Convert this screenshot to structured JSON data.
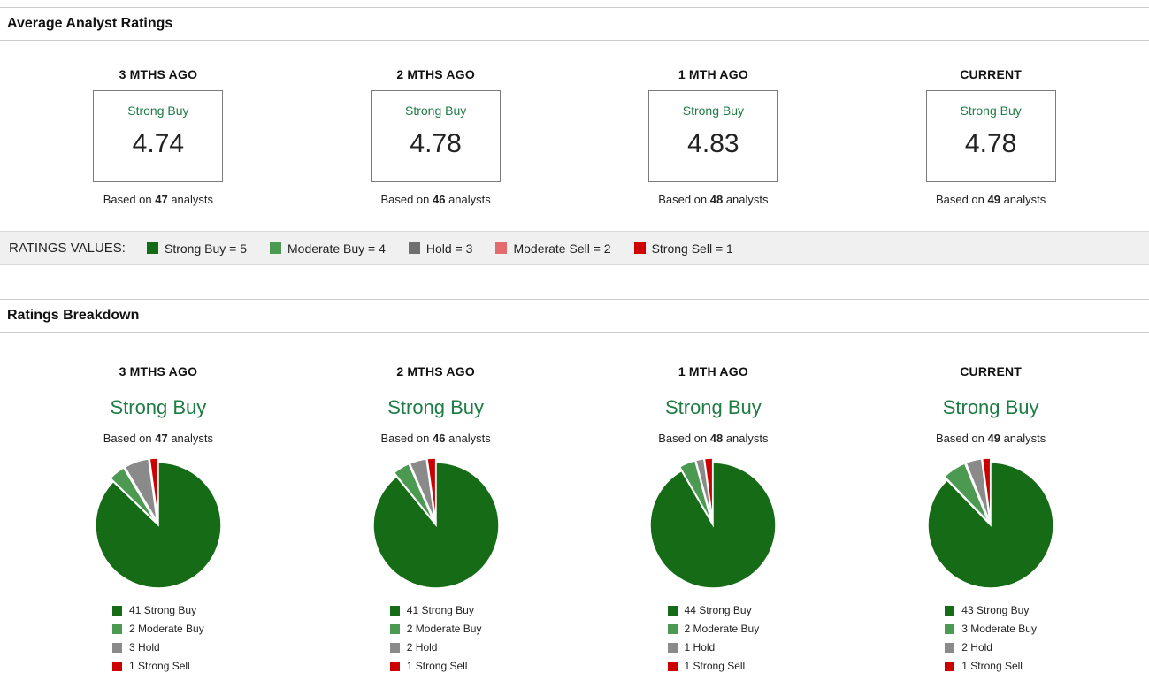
{
  "colors": {
    "strong_buy": "#166b16",
    "moderate_buy": "#4c9a52",
    "hold": "#8a8a8a",
    "hold_dark": "#6f6f6f",
    "moderate_sell": "#e06c6c",
    "strong_sell": "#cc0000",
    "rating_text_green": "#1e7c45"
  },
  "average_section": {
    "title": "Average Analyst Ratings",
    "columns": [
      {
        "period": "3 MTHS AGO",
        "rating": "Strong Buy",
        "value": "4.74",
        "based_on": {
          "prefix": "Based on ",
          "count": "47",
          "suffix": " analysts"
        }
      },
      {
        "period": "2 MTHS AGO",
        "rating": "Strong Buy",
        "value": "4.78",
        "based_on": {
          "prefix": "Based on ",
          "count": "46",
          "suffix": " analysts"
        }
      },
      {
        "period": "1 MTH AGO",
        "rating": "Strong Buy",
        "value": "4.83",
        "based_on": {
          "prefix": "Based on ",
          "count": "48",
          "suffix": " analysts"
        }
      },
      {
        "period": "CURRENT",
        "rating": "Strong Buy",
        "value": "4.78",
        "based_on": {
          "prefix": "Based on ",
          "count": "49",
          "suffix": " analysts"
        }
      }
    ]
  },
  "ratings_values": {
    "label": "RATINGS VALUES:",
    "legend": [
      {
        "label": "Strong Buy = 5",
        "color": "#166b16"
      },
      {
        "label": "Moderate Buy = 4",
        "color": "#4c9a52"
      },
      {
        "label": "Hold = 3",
        "color": "#6f6f6f"
      },
      {
        "label": "Moderate Sell = 2",
        "color": "#e06c6c"
      },
      {
        "label": "Strong Sell = 1",
        "color": "#cc0000"
      }
    ]
  },
  "breakdown_section": {
    "title": "Ratings Breakdown",
    "columns": [
      {
        "period": "3 MTHS AGO",
        "rating": "Strong Buy",
        "based_on": {
          "prefix": "Based on ",
          "count": "47",
          "suffix": " analysts"
        },
        "legend": [
          {
            "label": "41 Strong Buy",
            "color": "#166b16"
          },
          {
            "label": "2 Moderate Buy",
            "color": "#4c9a52"
          },
          {
            "label": "3 Hold",
            "color": "#8a8a8a"
          },
          {
            "label": "1 Strong Sell",
            "color": "#cc0000"
          }
        ]
      },
      {
        "period": "2 MTHS AGO",
        "rating": "Strong Buy",
        "based_on": {
          "prefix": "Based on ",
          "count": "46",
          "suffix": " analysts"
        },
        "legend": [
          {
            "label": "41 Strong Buy",
            "color": "#166b16"
          },
          {
            "label": "2 Moderate Buy",
            "color": "#4c9a52"
          },
          {
            "label": "2 Hold",
            "color": "#8a8a8a"
          },
          {
            "label": "1 Strong Sell",
            "color": "#cc0000"
          }
        ]
      },
      {
        "period": "1 MTH AGO",
        "rating": "Strong Buy",
        "based_on": {
          "prefix": "Based on ",
          "count": "48",
          "suffix": " analysts"
        },
        "legend": [
          {
            "label": "44 Strong Buy",
            "color": "#166b16"
          },
          {
            "label": "2 Moderate Buy",
            "color": "#4c9a52"
          },
          {
            "label": "1 Hold",
            "color": "#8a8a8a"
          },
          {
            "label": "1 Strong Sell",
            "color": "#cc0000"
          }
        ]
      },
      {
        "period": "CURRENT",
        "rating": "Strong Buy",
        "based_on": {
          "prefix": "Based on ",
          "count": "49",
          "suffix": " analysts"
        },
        "legend": [
          {
            "label": "43 Strong Buy",
            "color": "#166b16"
          },
          {
            "label": "3 Moderate Buy",
            "color": "#4c9a52"
          },
          {
            "label": "2 Hold",
            "color": "#8a8a8a"
          },
          {
            "label": "1 Strong Sell",
            "color": "#cc0000"
          }
        ]
      }
    ]
  },
  "chart_data": [
    {
      "type": "pie",
      "title": "3 MTHS AGO",
      "subtitle": "Strong Buy",
      "total_analysts": 47,
      "labels": [
        "Strong Buy",
        "Moderate Buy",
        "Hold",
        "Strong Sell"
      ],
      "values": [
        41,
        2,
        3,
        1
      ],
      "colors": [
        "#166b16",
        "#4c9a52",
        "#8a8a8a",
        "#cc0000"
      ],
      "legend_position": "bottom",
      "start_angle_deg": -90,
      "direction": "clockwise"
    },
    {
      "type": "pie",
      "title": "2 MTHS AGO",
      "subtitle": "Strong Buy",
      "total_analysts": 46,
      "labels": [
        "Strong Buy",
        "Moderate Buy",
        "Hold",
        "Strong Sell"
      ],
      "values": [
        41,
        2,
        2,
        1
      ],
      "colors": [
        "#166b16",
        "#4c9a52",
        "#8a8a8a",
        "#cc0000"
      ],
      "legend_position": "bottom",
      "start_angle_deg": -90,
      "direction": "clockwise"
    },
    {
      "type": "pie",
      "title": "1 MTH AGO",
      "subtitle": "Strong Buy",
      "total_analysts": 48,
      "labels": [
        "Strong Buy",
        "Moderate Buy",
        "Hold",
        "Strong Sell"
      ],
      "values": [
        44,
        2,
        1,
        1
      ],
      "colors": [
        "#166b16",
        "#4c9a52",
        "#8a8a8a",
        "#cc0000"
      ],
      "legend_position": "bottom",
      "start_angle_deg": -90,
      "direction": "clockwise"
    },
    {
      "type": "pie",
      "title": "CURRENT",
      "subtitle": "Strong Buy",
      "total_analysts": 49,
      "labels": [
        "Strong Buy",
        "Moderate Buy",
        "Hold",
        "Strong Sell"
      ],
      "values": [
        43,
        3,
        2,
        1
      ],
      "colors": [
        "#166b16",
        "#4c9a52",
        "#8a8a8a",
        "#cc0000"
      ],
      "legend_position": "bottom",
      "start_angle_deg": -90,
      "direction": "clockwise"
    }
  ]
}
